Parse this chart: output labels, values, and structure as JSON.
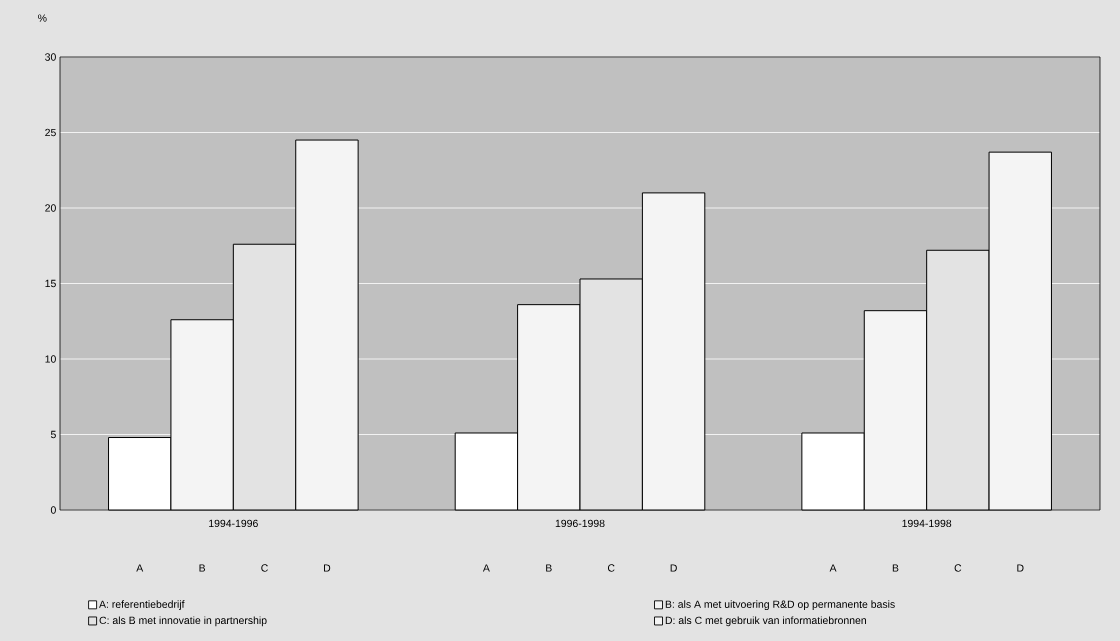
{
  "chart_data": {
    "type": "bar",
    "ylabel": "%",
    "categories": [
      "1994-1996",
      "1996-1998",
      "1994-1998"
    ],
    "series": [
      {
        "name": "A: referentiebedrijf",
        "color": "#ffffff",
        "values": [
          4.8,
          5.1,
          5.1
        ]
      },
      {
        "name": "B: als A met uitvoering R&D op permanente basis",
        "color": "#f4f4f4",
        "values": [
          12.6,
          13.6,
          13.2
        ]
      },
      {
        "name": "C: als B met innovatie in partnership",
        "color": "#e3e3e3",
        "values": [
          17.6,
          15.3,
          17.2
        ]
      },
      {
        "name": "D: als C met gebruik van informatiebronnen",
        "color": "#f4f4f4",
        "values": [
          24.5,
          21.0,
          23.7
        ]
      }
    ],
    "annotations": [
      "A",
      "B",
      "C",
      "D",
      "A",
      "B",
      "C",
      "D",
      "A",
      "B",
      "C",
      "D"
    ],
    "ylim": [
      0,
      30
    ],
    "yticks": [
      0,
      5,
      10,
      15,
      20,
      25,
      30
    ],
    "grid": "y",
    "legend": "bottom"
  }
}
